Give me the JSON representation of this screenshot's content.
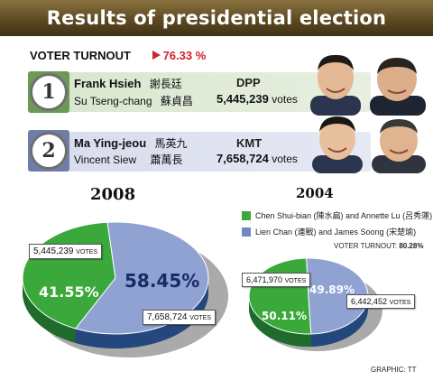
{
  "title": "Results of presidential election",
  "turnout": {
    "label": "VOTER TURNOUT",
    "value": "76.33 %"
  },
  "candidates": [
    {
      "number": "1",
      "president": "Frank Hsieh",
      "president_zh": "謝長廷",
      "vice": "Su Tseng-chang",
      "vice_zh": "蘇貞昌",
      "party": "DPP",
      "votes": "5,445,239",
      "votes_unit": "votes",
      "color": "#3aa83a"
    },
    {
      "number": "2",
      "president": "Ma Ying-jeou",
      "president_zh": "馬英九",
      "vice": "Vincent Siew",
      "vice_zh": "蕭萬長",
      "party": "KMT",
      "votes": "7,658,724",
      "votes_unit": "votes",
      "color": "#8fa2d2"
    }
  ],
  "chart_data": [
    {
      "type": "pie",
      "title": "2008",
      "slices": [
        {
          "label": "41.55%",
          "value": 41.55,
          "votes": "5,445,239",
          "votes_unit": "VOTES",
          "color": "#3aa83a"
        },
        {
          "label": "58.45%",
          "value": 58.45,
          "votes": "7,658,724",
          "votes_unit": "VOTES",
          "color": "#8fa2d2"
        }
      ]
    },
    {
      "type": "pie",
      "title": "2004",
      "legend": [
        {
          "name": "Chen Shui-bian (陳水扁) and Annette Lu (呂秀蓮)",
          "color": "#3aa83a"
        },
        {
          "name": "Lien Chan (連戰) and James Soong (宋楚瑜)",
          "color": "#6f88c4"
        }
      ],
      "turnout_label": "VOTER TURNOUT:",
      "turnout_value": "80.28%",
      "slices": [
        {
          "label": "50.11%",
          "value": 50.11,
          "votes": "6,471,970",
          "votes_unit": "VOTES",
          "color": "#3aa83a"
        },
        {
          "label": "49.89%",
          "value": 49.89,
          "votes": "6,442,452",
          "votes_unit": "VOTES",
          "color": "#8fa2d2"
        }
      ]
    }
  ],
  "credit": "GRAPHIC: TT"
}
